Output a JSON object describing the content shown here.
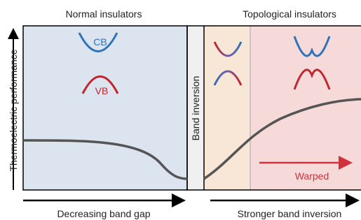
{
  "header": {
    "left": "Normal insulators",
    "right": "Topological insulators"
  },
  "y_axis_label": "Thermoelectric performance",
  "bands": {
    "conduction": "CB",
    "valence": "VB"
  },
  "band_inversion": "Band inversion",
  "warped": "Warped",
  "footer": {
    "left": "Decreasing band gap",
    "right": "Stronger band inversion"
  }
}
